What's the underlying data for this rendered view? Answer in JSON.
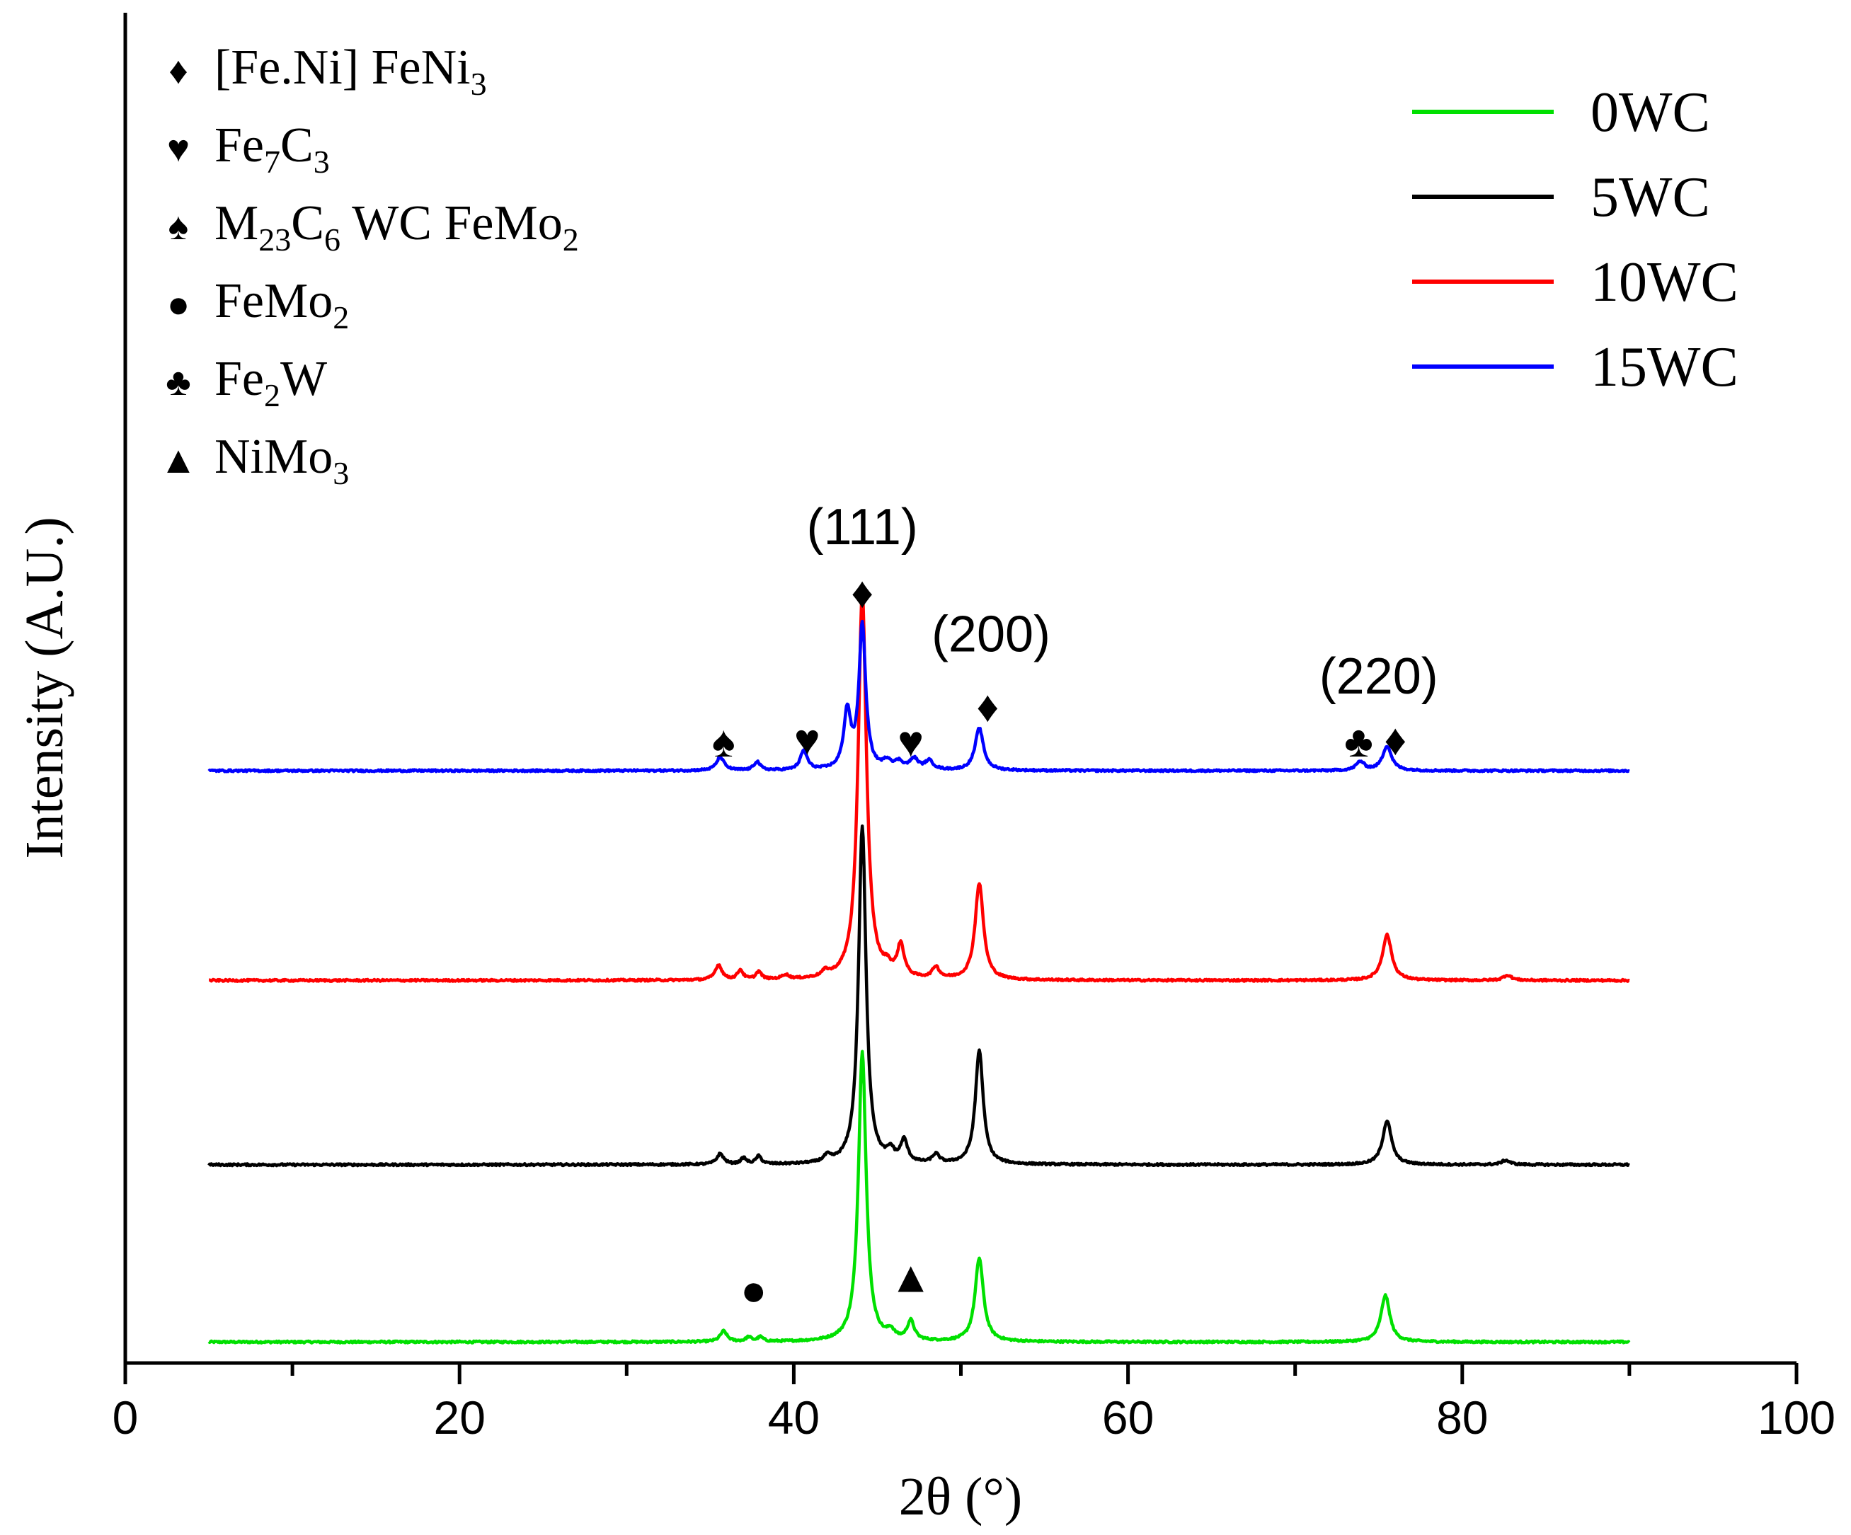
{
  "chart_data": {
    "type": "line",
    "xlabel": "2θ (°)",
    "ylabel": "Intensity (A.U.)",
    "xlim": [
      0,
      100
    ],
    "xticks": [
      "0",
      "20",
      "40",
      "60",
      "80",
      "100"
    ],
    "series": [
      {
        "name": "0WC",
        "color": "#00e000",
        "offset": 0,
        "baseline": 3,
        "peaks": [
          [
            35.8,
            12,
            0.25
          ],
          [
            37.3,
            5,
            0.2
          ],
          [
            38.0,
            5,
            0.2
          ],
          [
            44.1,
            330,
            0.28
          ],
          [
            45.8,
            9,
            0.25
          ],
          [
            47.0,
            22,
            0.25
          ],
          [
            51.1,
            95,
            0.3
          ],
          [
            75.4,
            53,
            0.32
          ]
        ]
      },
      {
        "name": "5WC",
        "color": "#000000",
        "offset": 200,
        "baseline": 5,
        "peaks": [
          [
            35.6,
            12,
            0.25
          ],
          [
            37.0,
            7,
            0.2
          ],
          [
            37.9,
            9,
            0.2
          ],
          [
            42.0,
            7,
            0.25
          ],
          [
            44.1,
            385,
            0.27
          ],
          [
            45.8,
            12,
            0.25
          ],
          [
            46.6,
            25,
            0.25
          ],
          [
            48.5,
            10,
            0.25
          ],
          [
            51.1,
            130,
            0.28
          ],
          [
            75.5,
            50,
            0.32
          ],
          [
            82.6,
            5,
            0.3
          ]
        ]
      },
      {
        "name": "10WC",
        "color": "#ff0000",
        "offset": 410,
        "baseline": 5,
        "peaks": [
          [
            35.5,
            17,
            0.25
          ],
          [
            36.8,
            11,
            0.2
          ],
          [
            37.9,
            9,
            0.2
          ],
          [
            39.5,
            5,
            0.25
          ],
          [
            41.9,
            6,
            0.25
          ],
          [
            44.1,
            440,
            0.3
          ],
          [
            45.6,
            9,
            0.25
          ],
          [
            46.4,
            36,
            0.25
          ],
          [
            48.5,
            13,
            0.25
          ],
          [
            51.1,
            110,
            0.3
          ],
          [
            75.5,
            52,
            0.33
          ],
          [
            82.7,
            6,
            0.3
          ]
        ]
      },
      {
        "name": "15WC",
        "color": "#0000ff",
        "offset": 650,
        "baseline": 4,
        "peaks": [
          [
            35.6,
            15,
            0.28
          ],
          [
            37.8,
            10,
            0.22
          ],
          [
            40.6,
            22,
            0.25
          ],
          [
            43.2,
            65,
            0.25
          ],
          [
            44.1,
            165,
            0.24
          ],
          [
            45.6,
            9,
            0.3
          ],
          [
            46.3,
            8,
            0.3
          ],
          [
            47.2,
            12,
            0.3
          ],
          [
            48.1,
            10,
            0.3
          ],
          [
            51.1,
            48,
            0.3
          ],
          [
            73.9,
            10,
            0.3
          ],
          [
            75.5,
            28,
            0.32
          ]
        ]
      }
    ],
    "peak_labels": [
      {
        "text": "(111)",
        "x": 44.1,
        "y": 912
      },
      {
        "text": "(200)",
        "x": 51.8,
        "y": 790
      },
      {
        "text": "(220)",
        "x": 75.0,
        "y": 742
      }
    ],
    "phase_markers": [
      {
        "symbol": "♦",
        "x": 44.1,
        "y": 840
      },
      {
        "symbol": "♦",
        "x": 51.6,
        "y": 710
      },
      {
        "symbol": "♦",
        "x": 76.0,
        "y": 672
      },
      {
        "symbol": "♠",
        "x": 35.8,
        "y": 670
      },
      {
        "symbol": "♥",
        "x": 40.8,
        "y": 672
      },
      {
        "symbol": "♥",
        "x": 47.0,
        "y": 670
      },
      {
        "symbol": "♣",
        "x": 73.8,
        "y": 670
      },
      {
        "symbol": "●",
        "x": 37.6,
        "y": 45
      },
      {
        "symbol": "▲",
        "x": 47.0,
        "y": 60
      }
    ],
    "phase_legend": [
      {
        "symbol": "♦",
        "parts": [
          [
            "[Fe.Ni]  FeNi",
            ""
          ],
          [
            "3",
            "sub"
          ]
        ]
      },
      {
        "symbol": "♥",
        "parts": [
          [
            "Fe",
            ""
          ],
          [
            "7",
            "sub"
          ],
          [
            "C",
            ""
          ],
          [
            "3",
            "sub"
          ]
        ]
      },
      {
        "symbol": "♠",
        "parts": [
          [
            "M",
            ""
          ],
          [
            "23",
            "sub"
          ],
          [
            "C",
            ""
          ],
          [
            "6",
            "sub"
          ],
          [
            "  WC  FeMo",
            ""
          ],
          [
            "2",
            "sub"
          ]
        ]
      },
      {
        "symbol": "●",
        "parts": [
          [
            "FeMo",
            ""
          ],
          [
            "2",
            "sub"
          ]
        ]
      },
      {
        "symbol": "♣",
        "parts": [
          [
            "Fe",
            ""
          ],
          [
            "2",
            "sub"
          ],
          [
            "W",
            ""
          ]
        ]
      },
      {
        "symbol": "▲",
        "parts": [
          [
            "NiMo",
            ""
          ],
          [
            "3",
            "sub"
          ]
        ]
      }
    ],
    "legend_position": "top-right"
  }
}
